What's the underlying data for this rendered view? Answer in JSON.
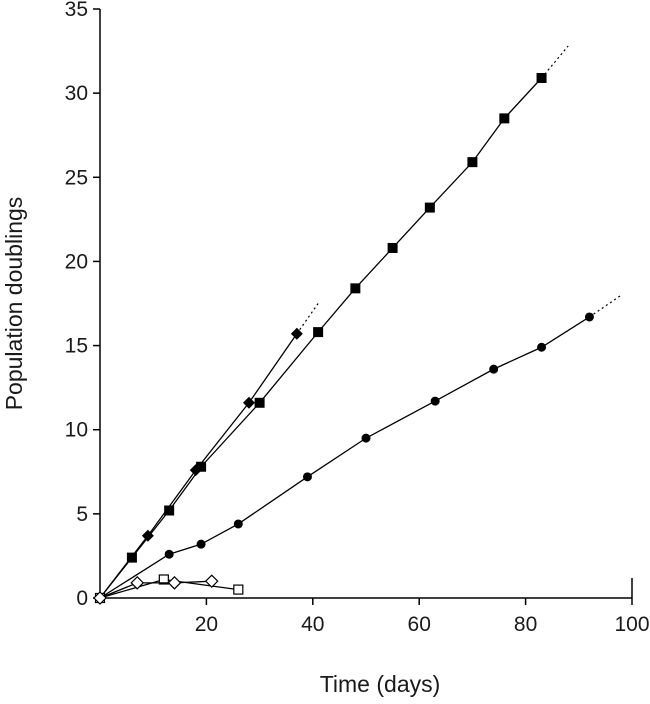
{
  "chart_data": {
    "type": "line",
    "title": "",
    "xlabel": "Time (days)",
    "ylabel": "Population doublings",
    "xlim": [
      0,
      100
    ],
    "ylim": [
      0,
      35
    ],
    "x_ticks": [
      20,
      40,
      60,
      80,
      100
    ],
    "y_ticks": [
      0,
      5,
      10,
      15,
      20,
      25,
      30,
      35
    ],
    "grid": false,
    "legend": "none",
    "series": [
      {
        "marker": "filled-square",
        "color": "#000000",
        "x": [
          0,
          6,
          13,
          19,
          30,
          41,
          48,
          55,
          62,
          70,
          76,
          83
        ],
        "y": [
          0,
          2.4,
          5.2,
          7.8,
          11.6,
          15.8,
          18.4,
          20.8,
          23.2,
          25.9,
          28.5,
          30.9
        ],
        "extension": [
          [
            83,
            30.9
          ],
          [
            88,
            32.8
          ]
        ]
      },
      {
        "marker": "filled-diamond",
        "color": "#000000",
        "x": [
          0,
          9,
          18,
          28,
          37
        ],
        "y": [
          0,
          3.7,
          7.6,
          11.6,
          15.7
        ],
        "extension": [
          [
            37,
            15.7
          ],
          [
            41,
            17.5
          ]
        ]
      },
      {
        "marker": "filled-circle",
        "color": "#000000",
        "x": [
          0,
          13,
          19,
          26,
          39,
          50,
          63,
          74,
          83,
          92
        ],
        "y": [
          0,
          2.6,
          3.2,
          4.4,
          7.2,
          9.5,
          11.7,
          13.6,
          14.9,
          16.7
        ],
        "extension": [
          [
            92,
            16.7
          ],
          [
            98,
            18
          ]
        ]
      },
      {
        "marker": "open-square",
        "color": "#000000",
        "x": [
          0,
          12,
          26
        ],
        "y": [
          0,
          1.1,
          0.5
        ]
      },
      {
        "marker": "open-diamond",
        "color": "#000000",
        "x": [
          0,
          7,
          14,
          21
        ],
        "y": [
          0,
          0.9,
          0.9,
          1.0
        ]
      }
    ]
  }
}
